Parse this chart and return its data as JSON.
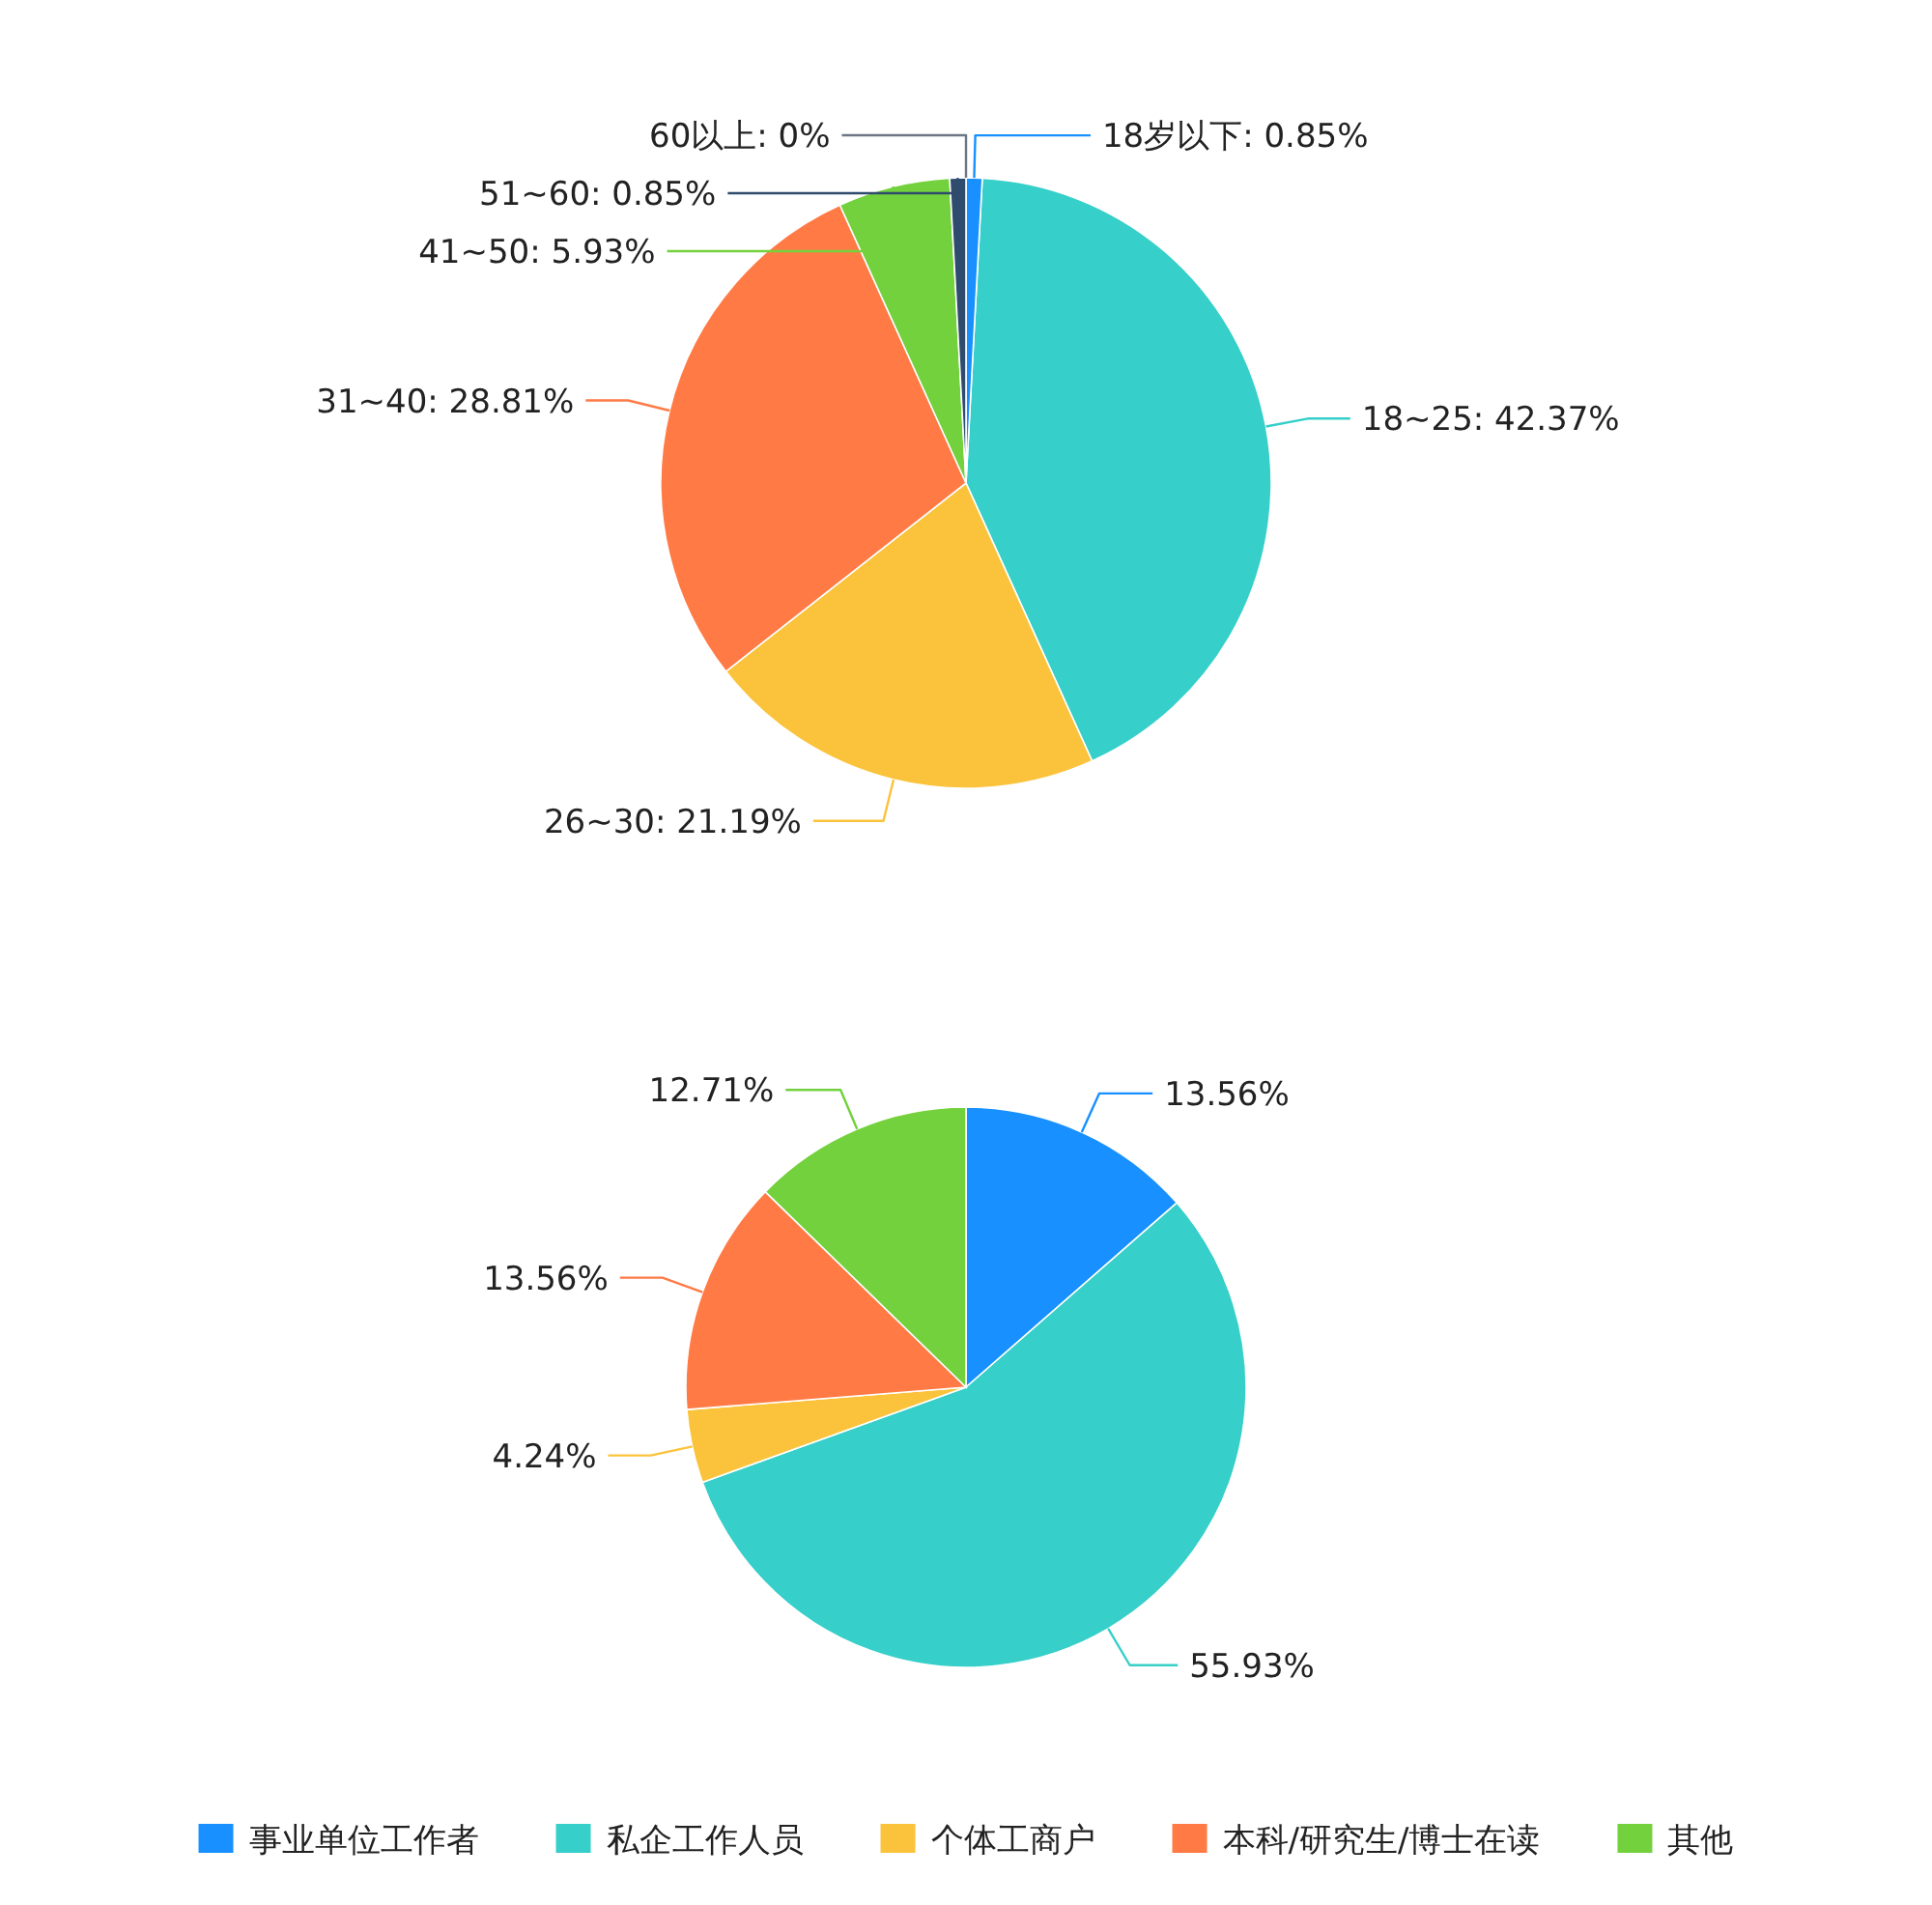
{
  "chart_data": [
    {
      "type": "pie",
      "categories": [
        "18岁以下",
        "18~25",
        "26~30",
        "31~40",
        "41~50",
        "51~60",
        "60以上"
      ],
      "values": [
        0.85,
        42.37,
        21.19,
        28.81,
        5.93,
        0.85,
        0
      ],
      "value_labels": [
        "0.85%",
        "42.37%",
        "21.19%",
        "28.81%",
        "5.93%",
        "0.85%",
        "0%"
      ],
      "colors": [
        "#1890ff",
        "#36cfc9",
        "#fbc33b",
        "#ff7a45",
        "#73d13d",
        "#2f4b6e",
        "#6b7785"
      ]
    },
    {
      "type": "pie",
      "categories": [
        "事业单位工作者",
        "私企工作人员",
        "个体工商户",
        "本科/研究生/博士在读",
        "其他"
      ],
      "values": [
        13.56,
        55.93,
        4.24,
        13.56,
        12.71
      ],
      "value_labels": [
        "13.56%",
        "55.93%",
        "4.24%",
        "13.56%",
        "12.71%"
      ],
      "colors": [
        "#1890ff",
        "#36cfc9",
        "#fbc33b",
        "#ff7a45",
        "#73d13d"
      ],
      "legend": "bottom"
    }
  ]
}
